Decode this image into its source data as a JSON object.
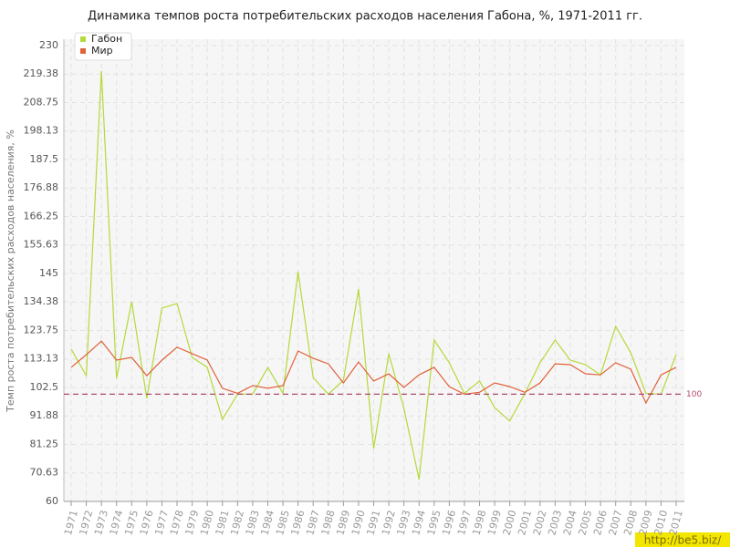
{
  "chart_data": {
    "type": "line",
    "title": "Динамика темпов роста потребительских расходов населения Габона, %, 1971-2011 гг.",
    "y_label": "Темп роста потребительских расходов населения, %",
    "categories": [
      "1971",
      "1972",
      "1973",
      "1974",
      "1975",
      "1976",
      "1977",
      "1978",
      "1979",
      "1980",
      "1981",
      "1982",
      "1983",
      "1984",
      "1985",
      "1986",
      "1987",
      "1988",
      "1989",
      "1990",
      "1991",
      "1992",
      "1993",
      "1994",
      "1995",
      "1996",
      "1997",
      "1998",
      "1999",
      "2000",
      "2001",
      "2002",
      "2003",
      "2004",
      "2005",
      "2006",
      "2007",
      "2008",
      "2009",
      "2010",
      "2011"
    ],
    "series": [
      {
        "name": "Габон",
        "color": "#b5d93a",
        "values": [
          116.8,
          106.9,
          220.5,
          105.9,
          134.5,
          98.4,
          132.1,
          133.8,
          113.7,
          110,
          90.6,
          100,
          100,
          110,
          100.3,
          145.7,
          106.2,
          100,
          105.2,
          139.2,
          79.7,
          115.1,
          94.7,
          68.2,
          120.2,
          111.7,
          100.3,
          104.9,
          95,
          90,
          100.3,
          111.7,
          120.2,
          112.7,
          111,
          107.2,
          125.3,
          115.4,
          100.3,
          100,
          114.7
        ]
      },
      {
        "name": "Мир",
        "color": "#e0623a",
        "values": [
          110,
          114.7,
          119.8,
          112.7,
          113.7,
          106.9,
          112.7,
          117.5,
          115.1,
          112.7,
          102.2,
          100.3,
          103.2,
          102.2,
          103.2,
          116.1,
          113.4,
          111.3,
          104.2,
          112,
          104.9,
          107.6,
          102.5,
          107.2,
          110,
          102.8,
          100,
          100.7,
          104.2,
          102.8,
          100.7,
          104.2,
          111.3,
          111,
          107.6,
          107.2,
          111.7,
          109.3,
          96.7,
          107.2,
          110
        ]
      }
    ],
    "ylim": [
      60,
      230
    ],
    "yticks": [
      60,
      70.63,
      81.25,
      91.88,
      102.5,
      113.13,
      123.75,
      134.38,
      145,
      155.63,
      166.25,
      176.88,
      187.5,
      198.13,
      208.75,
      219.38,
      230
    ],
    "reference_line": 100,
    "reference_color": "#b04a6a",
    "grid": true,
    "legend": "top-left",
    "watermark": "http://be5.biz/"
  }
}
